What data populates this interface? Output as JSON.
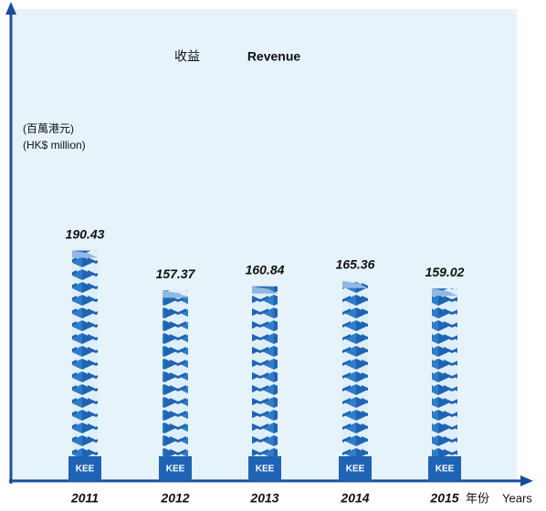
{
  "chart_data": {
    "type": "bar",
    "title_cn": "收益",
    "title": "Revenue",
    "y_label_cn": "(百萬港元)",
    "y_label": "(HK$ million)",
    "x_label_cn": "年份",
    "x_label": "Years",
    "logo_text": "KEE",
    "categories": [
      "2011",
      "2012",
      "2013",
      "2014",
      "2015"
    ],
    "values": [
      190.43,
      157.37,
      160.84,
      165.36,
      159.02
    ],
    "color": "#1f64b4",
    "ylim": [
      0,
      390
    ]
  }
}
